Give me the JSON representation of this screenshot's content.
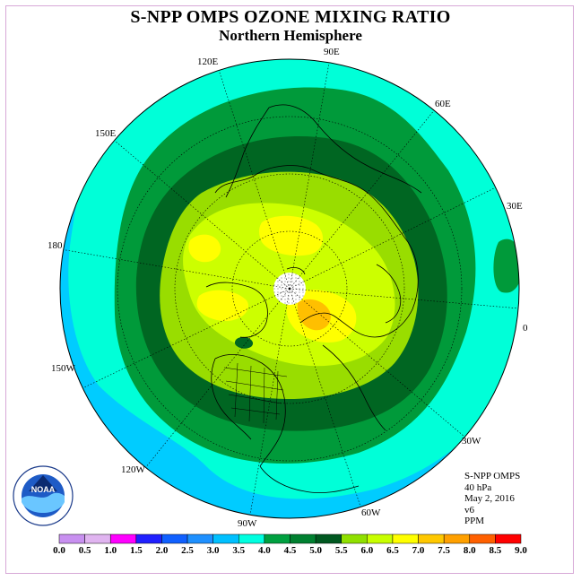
{
  "title": "S-NPP OMPS OZONE MIXING RATIO",
  "subtitle": "Northern Hemisphere",
  "longitude_labels": {
    "lon_0": "0",
    "lon_30e": "30E",
    "lon_60e": "60E",
    "lon_90e": "90E",
    "lon_120e": "120E",
    "lon_150e": "150E",
    "lon_180": "180",
    "lon_150w": "150W",
    "lon_120w": "120W",
    "lon_90w": "90W",
    "lon_60w": "60W",
    "lon_30w": "30W"
  },
  "info": {
    "instrument": "S-NPP OMPS",
    "level": "40 hPa",
    "date": "May 2, 2016",
    "version": "v6",
    "units": "PPM"
  },
  "colorbar": {
    "ticks": [
      "0.0",
      "0.5",
      "1.0",
      "1.5",
      "2.0",
      "2.5",
      "3.0",
      "3.5",
      "4.0",
      "4.5",
      "5.0",
      "5.5",
      "6.0",
      "6.5",
      "7.0",
      "7.5",
      "8.0",
      "8.5",
      "9.0"
    ],
    "colors": [
      "#c890f0",
      "#e0b4f0",
      "#ff00ff",
      "#2020ff",
      "#1060ff",
      "#1e90ff",
      "#00c0ff",
      "#00ffe0",
      "#00a040",
      "#008030",
      "#005820",
      "#90e000",
      "#c8ff00",
      "#ffff00",
      "#ffc800",
      "#ffa000",
      "#ff6000",
      "#ff0000",
      "#806040"
    ]
  },
  "map_colors": {
    "ocean_outer": "#00ccff",
    "band_35_40": "#00ffd8",
    "band_40_45": "#009a3a",
    "band_45_50": "#006622",
    "band_50_55": "#99dd00",
    "band_55_60": "#ccff00",
    "band_60_65": "#ffff00",
    "band_65_70": "#ffbf00",
    "polar_no_data": "#ffffff"
  },
  "logo": {
    "text": "NOAA"
  }
}
